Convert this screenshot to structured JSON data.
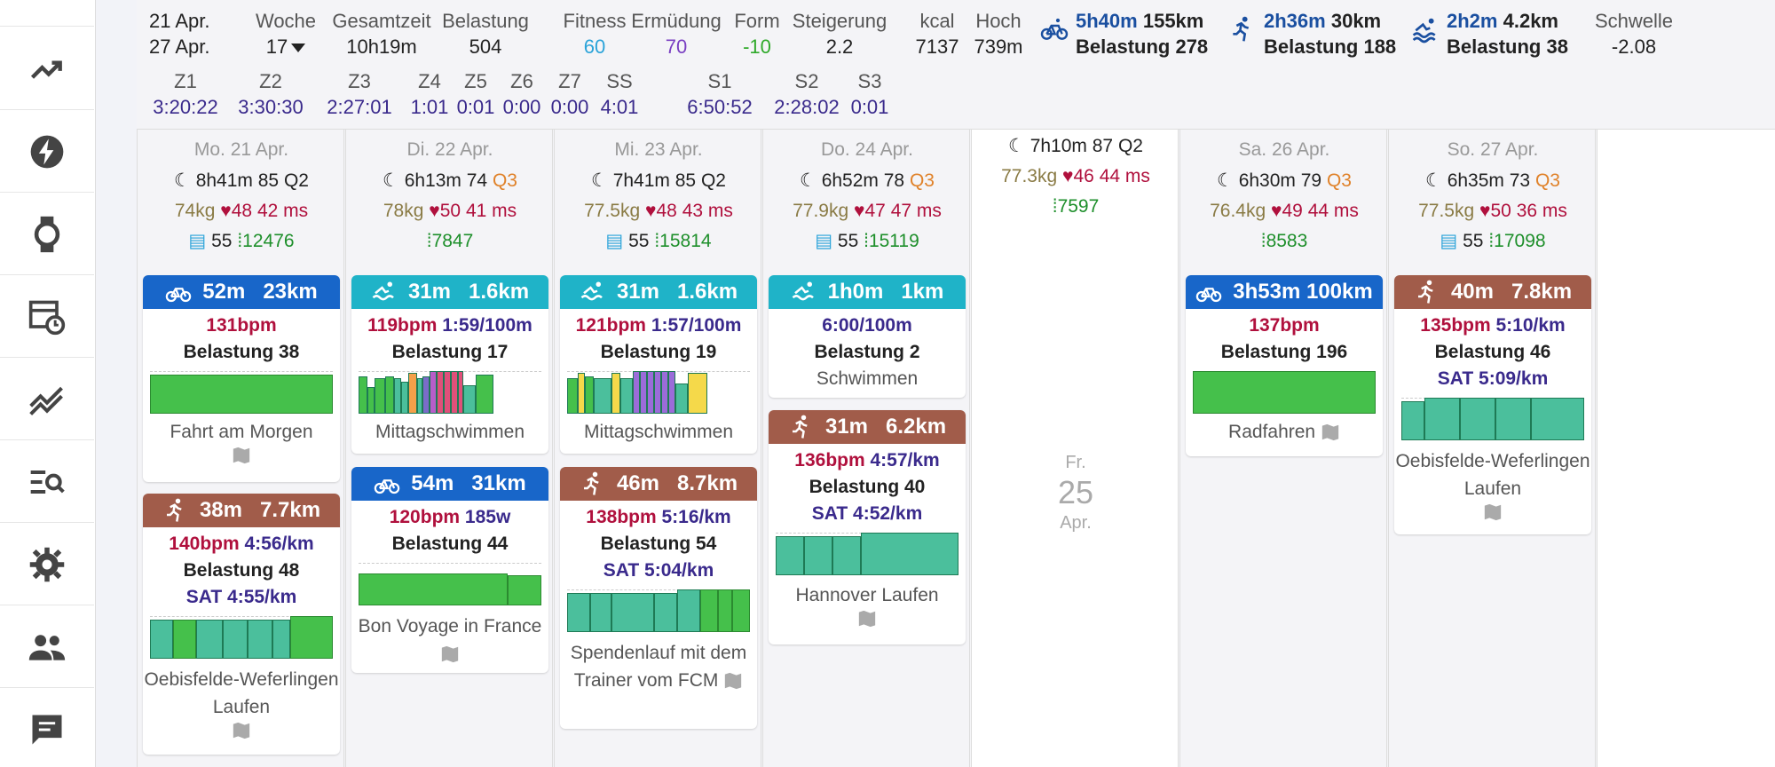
{
  "summary": {
    "range_start": "21 Apr.",
    "range_end": "27 Apr.",
    "week_label": "Woche",
    "week_value": "17",
    "total_label": "Gesamtzeit",
    "total_value": "10h19m",
    "load_label": "Belastung",
    "load_value": "504",
    "fitness_label": "Fitness",
    "fitness_value": "60",
    "fatigue_label": "Ermüdung",
    "fatigue_value": "70",
    "form_label": "Form",
    "form_value": "-10",
    "ramp_label": "Steigerung",
    "ramp_value": "2.2",
    "kcal_label": "kcal",
    "kcal_value": "7137",
    "elev_label": "Hoch",
    "elev_value": "739m",
    "threshold_label": "Schwelle",
    "threshold_value": "-2.08",
    "ride": {
      "time": "5h40m",
      "dist": "155km",
      "load": "Belastung 278"
    },
    "run": {
      "time": "2h36m",
      "dist": "30km",
      "load": "Belastung 188"
    },
    "swim": {
      "time": "2h2m",
      "dist": "4.2km",
      "load": "Belastung 38"
    },
    "zones": [
      {
        "label": "Z1",
        "value": "3:20:22"
      },
      {
        "label": "Z2",
        "value": "3:30:30"
      },
      {
        "label": "Z3",
        "value": "2:27:01"
      },
      {
        "label": "Z4",
        "value": "1:01"
      },
      {
        "label": "Z5",
        "value": "0:01"
      },
      {
        "label": "Z6",
        "value": "0:00"
      },
      {
        "label": "Z7",
        "value": "0:00"
      },
      {
        "label": "SS",
        "value": "4:01"
      },
      {
        "label": "S1",
        "value": "6:50:52"
      },
      {
        "label": "S2",
        "value": "2:28:02"
      },
      {
        "label": "S3",
        "value": "0:01"
      }
    ]
  },
  "colors": {
    "ride": "#1866c9",
    "swim": "#1fb3c8",
    "run": "#a15c4a",
    "fitness": "#2aa3d9",
    "fatigue": "#7a3fc2",
    "form": "#2fa92a",
    "zone": "#3a2a8c"
  },
  "days": [
    {
      "date": "Mo. 21 Apr.",
      "sleep": "8h41m",
      "score": "85",
      "q": "Q2",
      "weight": "74kg",
      "hr": "48",
      "hrv": "42 ms",
      "feel": "55",
      "steps": "12476"
    },
    {
      "date": "Di. 22 Apr.",
      "sleep": "6h13m",
      "score": "74",
      "q": "Q3",
      "weight": "78kg",
      "hr": "50",
      "hrv": "41 ms",
      "steps": "7847"
    },
    {
      "date": "Mi. 23 Apr.",
      "sleep": "7h41m",
      "score": "85",
      "q": "Q2",
      "weight": "77.5kg",
      "hr": "48",
      "hrv": "43 ms",
      "feel": "55",
      "steps": "15814"
    },
    {
      "date": "Do. 24 Apr.",
      "sleep": "6h52m",
      "score": "78",
      "q": "Q3",
      "weight": "77.9kg",
      "hr": "47",
      "hrv": "47 ms",
      "feel": "55",
      "steps": "15119"
    },
    {
      "date": "",
      "sleep": "7h10m",
      "score": "87",
      "q": "Q2",
      "weight": "77.3kg",
      "hr": "46",
      "hrv": "44 ms",
      "steps": "7597",
      "big_dow": "Fr.",
      "big_day": "25",
      "big_mon": "Apr."
    },
    {
      "date": "Sa. 26 Apr.",
      "sleep": "6h30m",
      "score": "79",
      "q": "Q3",
      "weight": "76.4kg",
      "hr": "49",
      "hrv": "44 ms",
      "steps": "8583"
    },
    {
      "date": "So. 27 Apr.",
      "sleep": "6h35m",
      "score": "73",
      "q": "Q3",
      "weight": "77.5kg",
      "hr": "50",
      "hrv": "36 ms",
      "feel": "55",
      "steps": "17098"
    }
  ],
  "activities": {
    "mon_ride": {
      "time": "52m",
      "dist": "23km",
      "bpm": "131bpm",
      "load": "Belastung 38",
      "name": "Fahrt am Morgen"
    },
    "mon_run": {
      "time": "38m",
      "dist": "7.7km",
      "bpm": "140bpm",
      "pace": "4:56/km",
      "load": "Belastung 48",
      "sat": "SAT 4:55/km",
      "name": "Oebisfelde-Weferlingen Laufen"
    },
    "tue_swim": {
      "time": "31m",
      "dist": "1.6km",
      "bpm": "119bpm",
      "pace": "1:59/100m",
      "load": "Belastung 17",
      "name": "Mittagschwimmen"
    },
    "tue_ride": {
      "time": "54m",
      "dist": "31km",
      "bpm": "120bpm",
      "power": "185w",
      "load": "Belastung 44",
      "name": "Bon Voyage in France"
    },
    "wed_swim": {
      "time": "31m",
      "dist": "1.6km",
      "bpm": "121bpm",
      "pace": "1:57/100m",
      "load": "Belastung 19",
      "name": "Mittagschwimmen"
    },
    "wed_run": {
      "time": "46m",
      "dist": "8.7km",
      "bpm": "138bpm",
      "pace": "5:16/km",
      "load": "Belastung 54",
      "sat": "SAT 5:04/km",
      "name": "Spendenlauf mit dem Trainer vom FCM"
    },
    "thu_swim": {
      "time": "1h0m",
      "dist": "1km",
      "pace": "6:00/100m",
      "load": "Belastung 2",
      "name": "Schwimmen"
    },
    "thu_run": {
      "time": "31m",
      "dist": "6.2km",
      "bpm": "136bpm",
      "pace": "4:57/km",
      "load": "Belastung 40",
      "sat": "SAT 4:52/km",
      "name": "Hannover Laufen"
    },
    "sat_ride": {
      "time": "3h53m",
      "dist": "100km",
      "bpm": "137bpm",
      "load": "Belastung 196",
      "name": "Radfahren"
    },
    "sun_run": {
      "time": "40m",
      "dist": "7.8km",
      "bpm": "135bpm",
      "pace": "5:10/km",
      "load": "Belastung 46",
      "sat": "SAT 5:09/km",
      "name": "Oebisfelde-Weferlingen Laufen"
    }
  },
  "sidebar": [
    "trend-icon",
    "bolt-icon",
    "watch-icon",
    "calendar-clock-icon",
    "fitness-chart-icon",
    "search-list-icon",
    "gear-icon",
    "people-icon",
    "chat-icon"
  ]
}
